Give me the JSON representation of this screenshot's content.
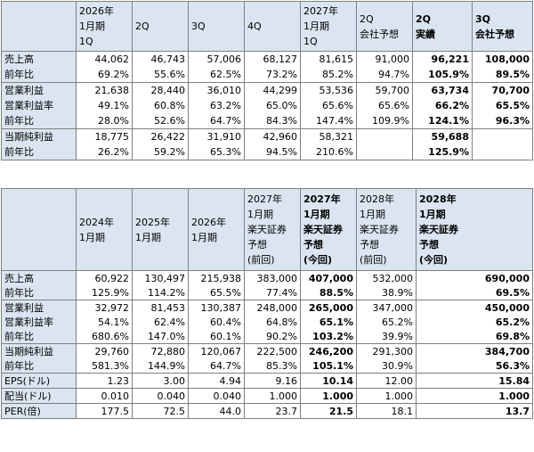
{
  "table1": {
    "headers": [
      "",
      "2026年\n1月期\n1Q",
      "2Q",
      "3Q",
      "4Q",
      "2027年\n1月期\n1Q",
      "2Q\n会社予想",
      "2Q\n実績",
      "3Q\n会社予想"
    ],
    "rows": [
      {
        "label": "売上高",
        "values": [
          "44,062",
          "46,743",
          "57,006",
          "68,127",
          "81,615",
          "91,000",
          "96,221",
          "108,000"
        ]
      },
      {
        "label": "前年比",
        "values": [
          "69.2%",
          "55.6%",
          "62.5%",
          "73.2%",
          "85.2%",
          "94.7%",
          "105.9%",
          "89.5%"
        ]
      },
      {
        "label": "営業利益",
        "values": [
          "21,638",
          "28,440",
          "36,010",
          "44,299",
          "53,536",
          "59,700",
          "63,734",
          "70,700"
        ]
      },
      {
        "label": "営業利益率",
        "values": [
          "49.1%",
          "60.8%",
          "63.2%",
          "65.0%",
          "65.6%",
          "65.6%",
          "66.2%",
          "65.5%"
        ]
      },
      {
        "label": "前年比",
        "values": [
          "28.0%",
          "52.6%",
          "64.7%",
          "84.3%",
          "147.4%",
          "109.9%",
          "124.1%",
          "96.3%"
        ]
      },
      {
        "label": "当期純利益",
        "values": [
          "18,775",
          "26,422",
          "31,910",
          "42,960",
          "58,321",
          "",
          "59,688",
          ""
        ]
      },
      {
        "label": "前年比",
        "values": [
          "26.2%",
          "59.2%",
          "65.3%",
          "94.5%",
          "210.6%",
          "",
          "125.9%",
          ""
        ]
      }
    ]
  },
  "table2": {
    "headers": [
      "",
      "2024年\n1月期",
      "2025年\n1月期",
      "2026年\n1月期",
      "2027年\n1月期\n楽天証券\n予想\n(前回)",
      "2027年\n1月期\n楽天証券\n予想\n(今回)",
      "2028年\n1月期\n楽天証券\n予想\n(前回)",
      "2028年\n1月期\n楽天証券\n予想\n(今回)"
    ],
    "rows": [
      {
        "label": "売上高",
        "values": [
          "60,922",
          "130,497",
          "215,938",
          "383,000",
          "407,000",
          "532,000",
          "690,000"
        ]
      },
      {
        "label": "前年比",
        "values": [
          "125.9%",
          "114.2%",
          "65.5%",
          "77.4%",
          "88.5%",
          "38.9%",
          "69.5%"
        ]
      },
      {
        "label": "営業利益",
        "values": [
          "32,972",
          "81,453",
          "130,387",
          "248,000",
          "265,000",
          "347,000",
          "450,000"
        ]
      },
      {
        "label": "営業利益率",
        "values": [
          "54.1%",
          "62.4%",
          "60.4%",
          "64.8%",
          "65.1%",
          "65.2%",
          "65.2%"
        ]
      },
      {
        "label": "前年比",
        "values": [
          "680.6%",
          "147.0%",
          "60.1%",
          "90.2%",
          "103.2%",
          "39.9%",
          "69.8%"
        ]
      },
      {
        "label": "当期純利益",
        "values": [
          "29,760",
          "72,880",
          "120,067",
          "222,500",
          "246,200",
          "291,300",
          "384,700"
        ]
      },
      {
        "label": "前年比",
        "values": [
          "581.3%",
          "144.9%",
          "64.7%",
          "85.3%",
          "105.1%",
          "30.9%",
          "56.3%"
        ]
      },
      {
        "label": "EPS(ドル)",
        "values": [
          "1.23",
          "3.00",
          "4.94",
          "9.16",
          "10.14",
          "12.00",
          "15.84"
        ]
      },
      {
        "label": "配当(ドル)",
        "values": [
          "0.010",
          "0.040",
          "0.040",
          "1.000",
          "1.000",
          "1.000",
          "1.000"
        ]
      },
      {
        "label": "PER(倍)",
        "values": [
          "177.5",
          "72.5",
          "44.0",
          "23.7",
          "21.5",
          "18.1",
          "13.7"
        ]
      }
    ]
  }
}
